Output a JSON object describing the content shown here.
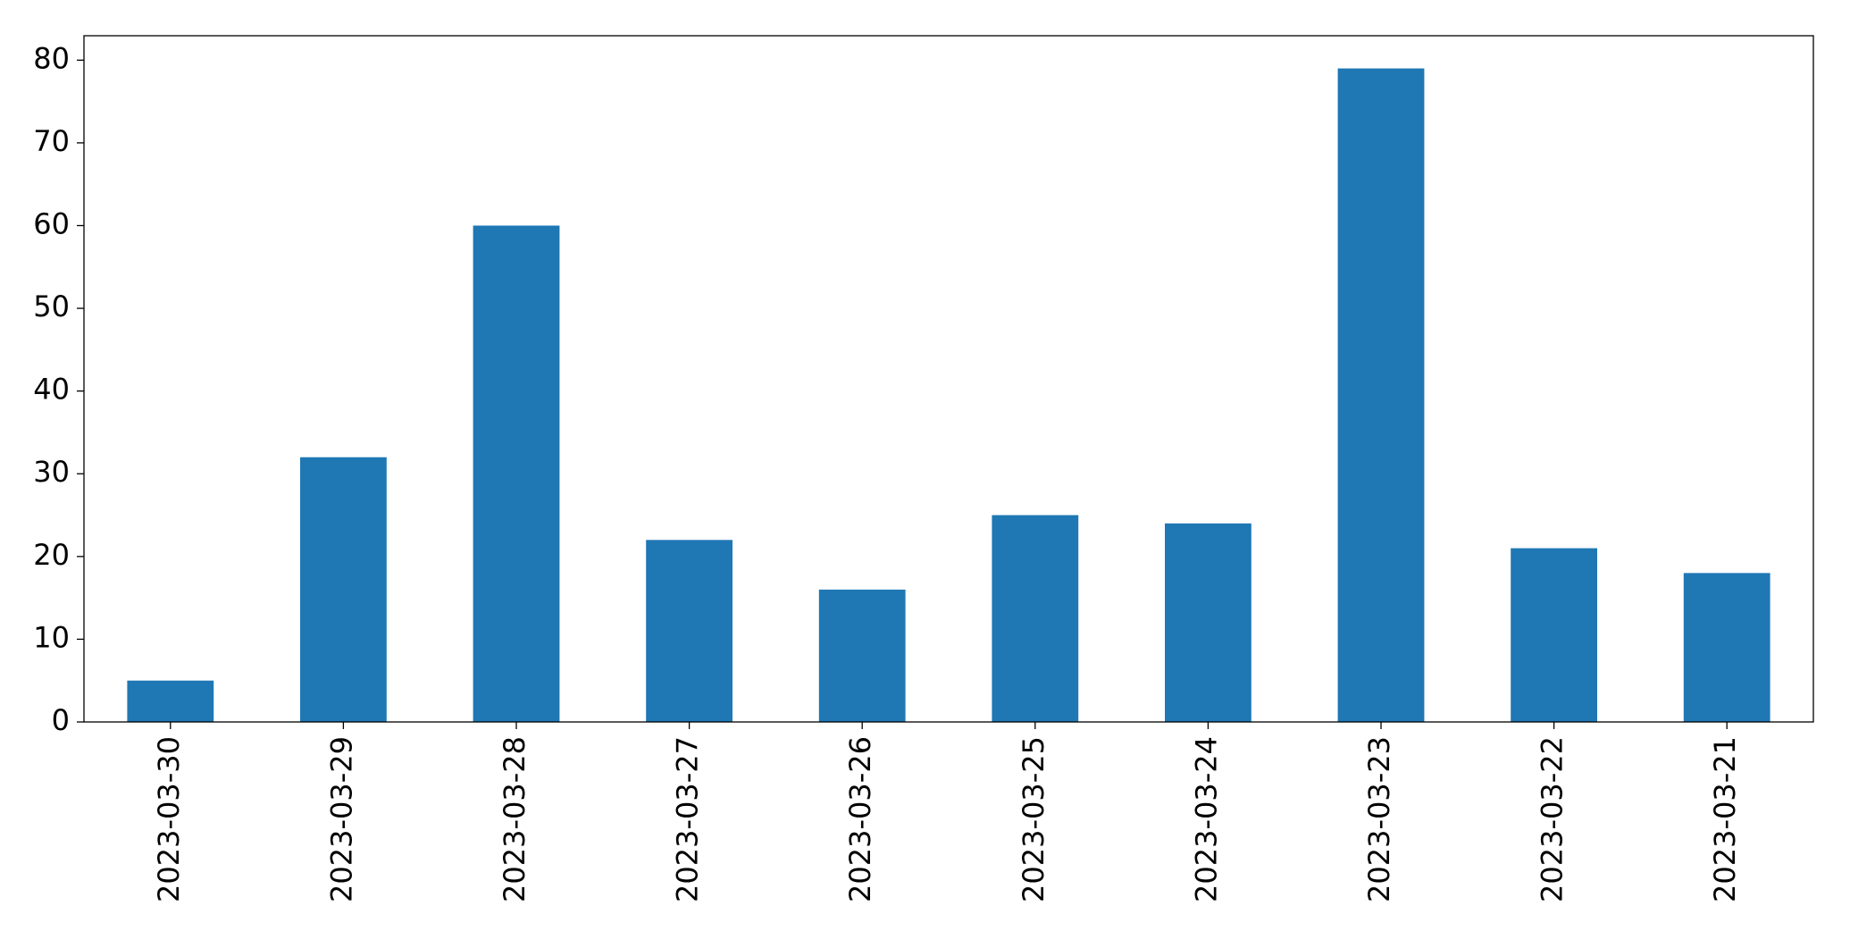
{
  "chart_data": {
    "type": "bar",
    "categories": [
      "2023-03-30",
      "2023-03-29",
      "2023-03-28",
      "2023-03-27",
      "2023-03-26",
      "2023-03-25",
      "2023-03-24",
      "2023-03-23",
      "2023-03-22",
      "2023-03-21"
    ],
    "values": [
      5,
      32,
      60,
      22,
      16,
      25,
      24,
      79,
      21,
      18
    ],
    "color": "#1f77b4",
    "ylim": [
      0,
      82.95
    ],
    "yticks": [
      0,
      10,
      20,
      30,
      40,
      50,
      60,
      70,
      80
    ],
    "grid": false
  }
}
